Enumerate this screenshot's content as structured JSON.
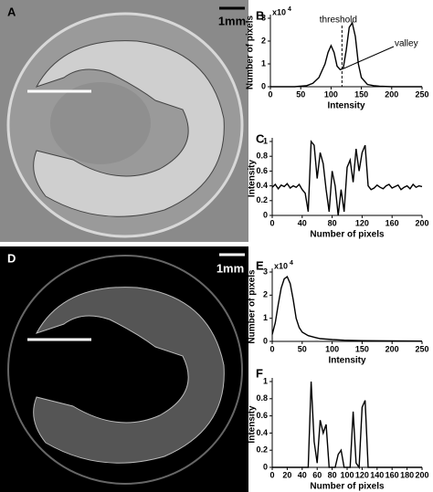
{
  "images": [
    {
      "label": "A",
      "scale_label": "1mm"
    },
    {
      "label": "D",
      "scale_label": "1mm"
    }
  ],
  "chart_data": [
    {
      "type": "line",
      "label": "B",
      "xlabel": "Intensity",
      "ylabel": "Number of pixels",
      "y_scale_label": {
        "base": "x10",
        "exponent": "4"
      },
      "annotations": [
        "threshold",
        "valley"
      ],
      "threshold_x": 118,
      "xlim": [
        0,
        250
      ],
      "ylim": [
        0,
        3
      ],
      "xticks": [
        0,
        50,
        100,
        150,
        200,
        250
      ],
      "yticks": [
        0,
        1,
        2,
        3
      ],
      "color": "#000000",
      "x": [
        0,
        20,
        40,
        60,
        70,
        80,
        90,
        95,
        100,
        105,
        110,
        115,
        120,
        125,
        130,
        135,
        140,
        145,
        150,
        160,
        170,
        180,
        200,
        220,
        250
      ],
      "values": [
        0,
        0,
        0,
        0.05,
        0.15,
        0.4,
        1.0,
        1.5,
        1.8,
        1.5,
        0.9,
        0.75,
        0.8,
        1.6,
        2.6,
        2.8,
        2.2,
        1.0,
        0.4,
        0.1,
        0.05,
        0.02,
        0,
        0,
        0
      ]
    },
    {
      "type": "line",
      "label": "C",
      "xlabel": "Number of pixels",
      "ylabel": "Intensity",
      "xlim": [
        0,
        200
      ],
      "ylim": [
        0,
        1
      ],
      "xticks": [
        0,
        40,
        80,
        120,
        160,
        200
      ],
      "yticks": [
        0,
        0.2,
        0.4,
        0.6,
        0.8,
        1
      ],
      "color": "#000000",
      "x": [
        0,
        4,
        8,
        12,
        16,
        20,
        24,
        28,
        32,
        36,
        40,
        44,
        48,
        52,
        56,
        60,
        64,
        68,
        72,
        76,
        80,
        84,
        88,
        92,
        96,
        100,
        104,
        108,
        112,
        116,
        120,
        124,
        128,
        132,
        136,
        140,
        144,
        148,
        152,
        156,
        160,
        164,
        168,
        172,
        176,
        180,
        184,
        188,
        192,
        196,
        200
      ],
      "values": [
        0.38,
        0.42,
        0.36,
        0.41,
        0.39,
        0.43,
        0.37,
        0.4,
        0.38,
        0.42,
        0.35,
        0.3,
        0.05,
        1.0,
        0.95,
        0.5,
        0.85,
        0.7,
        0.35,
        0.05,
        0.6,
        0.4,
        0.0,
        0.35,
        0.05,
        0.65,
        0.75,
        0.45,
        0.9,
        0.6,
        0.85,
        0.95,
        0.4,
        0.35,
        0.37,
        0.41,
        0.38,
        0.36,
        0.4,
        0.42,
        0.37,
        0.39,
        0.41,
        0.35,
        0.38,
        0.4,
        0.36,
        0.42,
        0.38,
        0.4,
        0.39
      ]
    },
    {
      "type": "line",
      "label": "E",
      "xlabel": "Intensity",
      "ylabel": "Number of pixels",
      "y_scale_label": {
        "base": "x10",
        "exponent": "4"
      },
      "xlim": [
        0,
        250
      ],
      "ylim": [
        0,
        3
      ],
      "xticks": [
        0,
        50,
        100,
        150,
        200,
        250
      ],
      "yticks": [
        0,
        1,
        2,
        3
      ],
      "color": "#000000",
      "x": [
        0,
        5,
        10,
        15,
        20,
        25,
        30,
        35,
        40,
        45,
        50,
        60,
        70,
        80,
        100,
        120,
        150,
        200,
        250
      ],
      "values": [
        0.3,
        0.8,
        1.6,
        2.3,
        2.7,
        2.8,
        2.5,
        1.8,
        1.0,
        0.6,
        0.4,
        0.25,
        0.18,
        0.12,
        0.08,
        0.05,
        0.03,
        0.02,
        0.01
      ]
    },
    {
      "type": "line",
      "label": "F",
      "xlabel": "Number of pixels",
      "ylabel": "Intensity",
      "xlim": [
        0,
        200
      ],
      "ylim": [
        0,
        1
      ],
      "xticks": [
        0,
        20,
        40,
        60,
        80,
        100,
        120,
        140,
        160,
        180,
        200
      ],
      "yticks": [
        0,
        0.2,
        0.4,
        0.6,
        0.8,
        1
      ],
      "color": "#000000",
      "x": [
        0,
        4,
        8,
        12,
        16,
        20,
        24,
        28,
        32,
        36,
        40,
        44,
        48,
        52,
        56,
        60,
        64,
        68,
        72,
        76,
        80,
        84,
        88,
        92,
        96,
        100,
        104,
        108,
        112,
        116,
        120,
        124,
        128,
        132,
        136,
        140,
        144,
        148,
        152,
        156,
        160,
        164,
        168,
        172,
        176,
        180,
        184,
        188,
        192,
        196,
        200
      ],
      "values": [
        0,
        0,
        0,
        0,
        0,
        0,
        0,
        0,
        0,
        0,
        0,
        0,
        0,
        1.0,
        0.3,
        0.05,
        0.55,
        0.4,
        0.5,
        0,
        0,
        0,
        0.15,
        0.2,
        0,
        0,
        0,
        0.65,
        0.05,
        0,
        0.7,
        0.78,
        0,
        0,
        0,
        0,
        0,
        0,
        0,
        0,
        0,
        0,
        0,
        0,
        0,
        0,
        0,
        0,
        0,
        0,
        0
      ]
    }
  ]
}
